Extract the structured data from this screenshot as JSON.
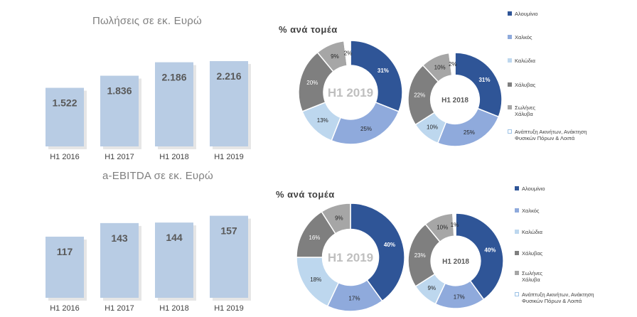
{
  "colors": {
    "bar": "#b8cce4",
    "bar_shadow": "#e6e6e6",
    "aluminium": "#2f5597",
    "copper": "#8faadc",
    "cables": "#bdd7ee",
    "steel": "#7f7f7f",
    "steel_pipes": "#a6a6a6",
    "property": "#ffffff"
  },
  "chart_data": [
    {
      "type": "bar",
      "title": "Πωλήσεις σε εκ. Ευρώ",
      "categories": [
        "H1 2016",
        "H1 2017",
        "H1 2018",
        "H1 2019"
      ],
      "values": [
        1522,
        1836,
        2186,
        2216
      ],
      "labels": [
        "1.522",
        "1.836",
        "2.186",
        "2.216"
      ],
      "ylim": [
        0,
        2400
      ]
    },
    {
      "type": "bar",
      "title": "a-EBITDA σε εκ. Ευρώ",
      "categories": [
        "H1 2016",
        "H1 2017",
        "H1 2018",
        "H1 2019"
      ],
      "values": [
        117,
        143,
        144,
        157
      ],
      "labels": [
        "117",
        "143",
        "144",
        "157"
      ],
      "ylim": [
        0,
        170
      ]
    },
    {
      "type": "pie",
      "title": "% ανά τομέα",
      "center_label": "H1 2019",
      "legend": [
        "Αλουμίνιο",
        "Χαλκός",
        "Καλώδια",
        "Χάλυβας",
        "Σωλήνες Χάλυβα",
        "Ανάπτυξη Ακινήτων, Ανάκτηση Φυσικών Πόρων & Λοιπά"
      ],
      "values": [
        31,
        25,
        13,
        20,
        9,
        2
      ],
      "labels": [
        "31%",
        "25%",
        "13%",
        "20%",
        "9%",
        "2%"
      ]
    },
    {
      "type": "pie",
      "center_label": "H1 2018",
      "values": [
        31,
        25,
        10,
        22,
        10,
        2
      ],
      "labels": [
        "31%",
        "25%",
        "10%",
        "22%",
        "10%",
        "2%"
      ]
    },
    {
      "type": "pie",
      "title": "% ανά τομέα",
      "center_label": "H1 2019",
      "legend": [
        "Αλουμίνιο",
        "Χαλκός",
        "Καλώδια",
        "Χάλυβας",
        "Σωλήνες Χάλυβα",
        "Ανάπτυξη Ακινήτων, Ανάκτηση Φυσικών Πόρων & Λοιπά"
      ],
      "values": [
        40,
        17,
        18,
        16,
        9,
        0
      ],
      "labels": [
        "40%",
        "17%",
        "18%",
        "16%",
        "9%",
        ""
      ]
    },
    {
      "type": "pie",
      "center_label": "H1 2018",
      "values": [
        40,
        17,
        9,
        23,
        10,
        1
      ],
      "labels": [
        "40%",
        "17%",
        "9%",
        "23%",
        "10%",
        "1%"
      ]
    }
  ]
}
